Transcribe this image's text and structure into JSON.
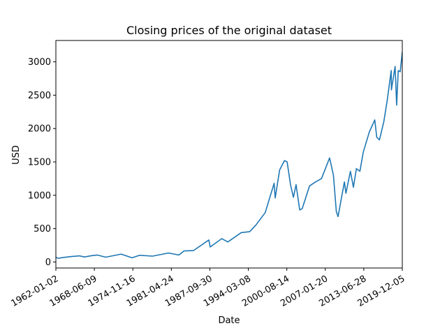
{
  "chart_data": {
    "type": "line",
    "title": "Closing prices of the original dataset",
    "xlabel": "Date",
    "ylabel": "USD",
    "x_ticks": [
      "1962-01-02",
      "1968-06-09",
      "1974-11-16",
      "1981-04-24",
      "1987-09-30",
      "1994-03-08",
      "2000-08-14",
      "2007-01-20",
      "2013-06-28",
      "2019-12-05"
    ],
    "y_ticks": [
      0,
      500,
      1000,
      1500,
      2000,
      2500,
      3000
    ],
    "xlim": [
      "1962-01-02",
      "2019-12-05"
    ],
    "ylim": [
      -90,
      3320
    ],
    "grid": false,
    "series": [
      {
        "color": "#1f77b4",
        "points": [
          [
            "1962-01-02",
            70
          ],
          [
            "1962-06-01",
            55
          ],
          [
            "1963-01-01",
            65
          ],
          [
            "1964-06-01",
            80
          ],
          [
            "1966-01-01",
            92
          ],
          [
            "1966-10-01",
            75
          ],
          [
            "1968-01-01",
            95
          ],
          [
            "1968-12-01",
            105
          ],
          [
            "1970-05-01",
            72
          ],
          [
            "1972-12-01",
            118
          ],
          [
            "1974-10-01",
            63
          ],
          [
            "1976-01-01",
            100
          ],
          [
            "1978-03-01",
            88
          ],
          [
            "1980-11-01",
            135
          ],
          [
            "1982-08-01",
            105
          ],
          [
            "1983-06-01",
            165
          ],
          [
            "1985-01-01",
            170
          ],
          [
            "1987-08-01",
            330
          ],
          [
            "1987-10-20",
            225
          ],
          [
            "1989-10-01",
            350
          ],
          [
            "1990-10-01",
            300
          ],
          [
            "1993-01-01",
            440
          ],
          [
            "1994-06-01",
            455
          ],
          [
            "1995-06-01",
            550
          ],
          [
            "1997-01-01",
            740
          ],
          [
            "1998-07-01",
            1180
          ],
          [
            "1998-09-01",
            960
          ],
          [
            "1999-06-01",
            1380
          ],
          [
            "2000-03-24",
            1520
          ],
          [
            "2000-09-01",
            1500
          ],
          [
            "2001-04-01",
            1150
          ],
          [
            "2001-09-21",
            970
          ],
          [
            "2002-03-01",
            1160
          ],
          [
            "2002-10-09",
            780
          ],
          [
            "2003-03-11",
            800
          ],
          [
            "2004-06-01",
            1140
          ],
          [
            "2005-06-01",
            1200
          ],
          [
            "2006-06-01",
            1250
          ],
          [
            "2007-10-09",
            1560
          ],
          [
            "2008-06-01",
            1300
          ],
          [
            "2008-11-20",
            760
          ],
          [
            "2009-03-09",
            680
          ],
          [
            "2010-04-01",
            1200
          ],
          [
            "2010-07-01",
            1030
          ],
          [
            "2011-04-01",
            1360
          ],
          [
            "2011-10-01",
            1120
          ],
          [
            "2012-04-01",
            1400
          ],
          [
            "2012-11-01",
            1360
          ],
          [
            "2013-06-01",
            1650
          ],
          [
            "2014-06-01",
            1950
          ],
          [
            "2015-05-01",
            2130
          ],
          [
            "2015-08-25",
            1870
          ],
          [
            "2016-02-11",
            1830
          ],
          [
            "2016-11-01",
            2100
          ],
          [
            "2017-06-01",
            2430
          ],
          [
            "2018-01-26",
            2870
          ],
          [
            "2018-02-08",
            2580
          ],
          [
            "2018-09-20",
            2930
          ],
          [
            "2018-12-24",
            2350
          ],
          [
            "2019-04-01",
            2870
          ],
          [
            "2019-08-01",
            2850
          ],
          [
            "2019-12-05",
            3150
          ]
        ]
      }
    ]
  }
}
